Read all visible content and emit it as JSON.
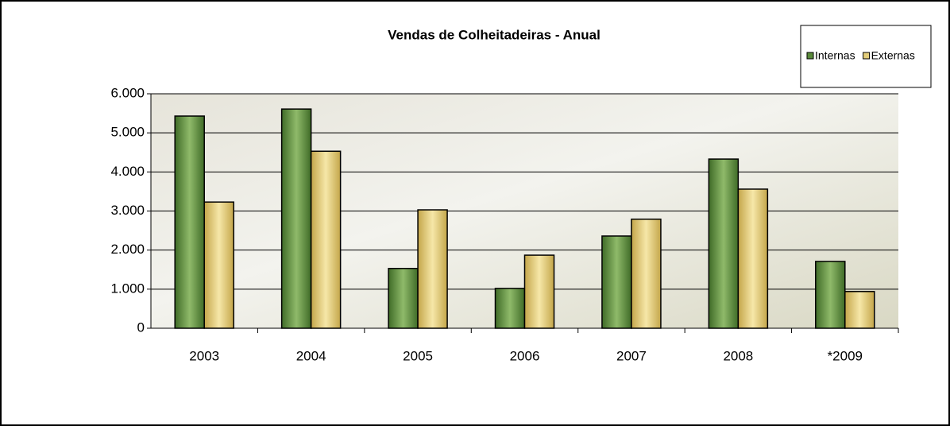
{
  "chart_data": {
    "type": "bar",
    "title": "Vendas de Colheitadeiras - Anual",
    "categories": [
      "2003",
      "2004",
      "2005",
      "2006",
      "2007",
      "2008",
      "*2009"
    ],
    "series": [
      {
        "name": "Internas",
        "color": "#5a8a3a",
        "values": [
          5430,
          5610,
          1530,
          1020,
          2360,
          4330,
          1710
        ]
      },
      {
        "name": "Externas",
        "color": "#e3cd7a",
        "values": [
          3230,
          4530,
          3030,
          1870,
          2790,
          3560,
          940
        ]
      }
    ],
    "ylim": [
      0,
      6000
    ],
    "yticks": [
      0,
      {
        "value": 1000,
        "label": "1.000"
      },
      {
        "value": 2000,
        "label": "2.000"
      },
      {
        "value": 3000,
        "label": "3.000"
      },
      {
        "value": 4000,
        "label": "4.000"
      },
      {
        "value": 5000,
        "label": "5.000"
      },
      {
        "value": 6000,
        "label": "6.000"
      }
    ],
    "grid": true,
    "legend": "top-right"
  }
}
